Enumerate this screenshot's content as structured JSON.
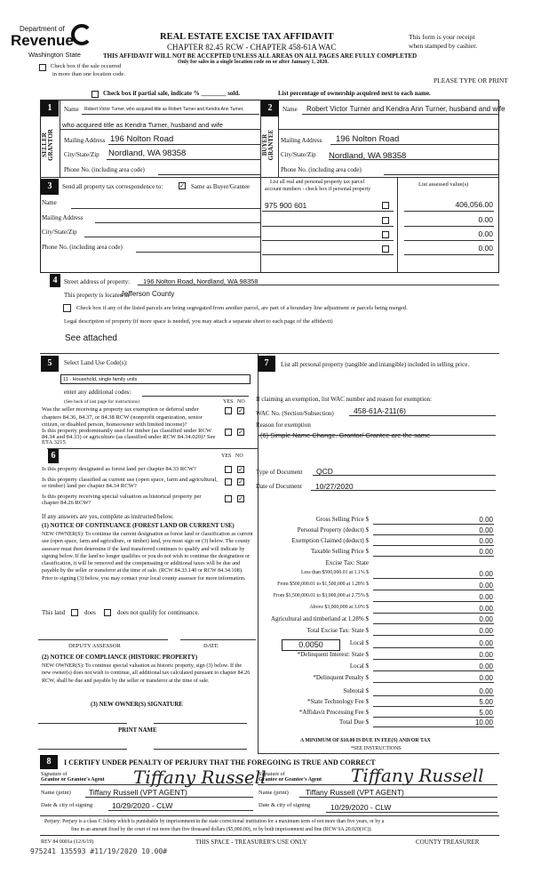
{
  "header": {
    "logo_dept": "Department of",
    "logo_name": "Revenue",
    "logo_state": "Washington State",
    "title": "REAL ESTATE EXCISE TAX AFFIDAVIT",
    "chapter": "CHAPTER 82.45 RCW - CHAPTER 458-61A WAC",
    "warning": "THIS AFFIDAVIT WILL NOT BE ACCEPTED UNLESS ALL AREAS ON ALL PAGES ARE FULLY COMPLETED",
    "only_for": "Only for sales in a single location code on or after January 1, 2020.",
    "receipt1": "This form is your receipt",
    "receipt2": "when stamped by cashier.",
    "multi_loc1": "Check box if the sale occurred",
    "multi_loc2": "in more than one location code.",
    "type_print": "PLEASE TYPE OR PRINT",
    "partial": "Check box if partial sale, indicate %  ________  sold.",
    "percentage": "List percentage of ownership acquired next to each name."
  },
  "seller": {
    "num": "1",
    "side": "SELLER GRANTOR",
    "name_label": "Name",
    "name": "Robert Victor Turner, who acquired title as Robert Turner and Kendra Ann Turner,",
    "name2": "who acquired title as Kendra Turner, husband and wife",
    "mail_label": "Mailing Address",
    "mail": "196 Nolton Road",
    "city_label": "City/State/Zip",
    "city": "Nordland, WA  98358",
    "phone_label": "Phone No. (including area code)"
  },
  "buyer": {
    "num": "2",
    "side": "BUYER GRANTEE",
    "name_label": "Name",
    "name": "Robert Victor Turner and Kendra Ann Turner, husband and wife",
    "mail_label": "Mailing Address",
    "mail": "196 Nolton Road",
    "city_label": "City/State/Zip",
    "city": "Nordland, WA  98358",
    "phone_label": "Phone No. (including area code)"
  },
  "sec3": {
    "num": "3",
    "send": "Send all property tax correspondence to:",
    "same_as": "Same as Buyer/Grantee",
    "same_checked": true,
    "name_label": "Name",
    "mail_label": "Mailing Address",
    "city_label": "City/State/Zip",
    "phone_label": "Phone No. (including area code)",
    "parcel_hdr1": "List all real and personal property tax parcel",
    "parcel_hdr2": "account numbers - check box if personal property",
    "assessed_hdr": "List assessed value(s)",
    "parcels": [
      "975 900 601",
      "",
      "",
      ""
    ],
    "values": [
      "406,056.00",
      "0.00",
      "0.00",
      "0.00"
    ]
  },
  "sec4": {
    "num": "4",
    "street_label": "Street address of property:",
    "street": "196 Nolton Road, Nordland, WA  98358",
    "located_label": "This property is located in",
    "located": "Jefferson County",
    "segregate": "Check box if any of the listed parcels are being segregated from another parcel, are part of a boundary line adjustment or parcels being merged.",
    "legal_label": "Legal description of property (if more space is needed, you may attach a separate sheet to each page of the affidavit)",
    "legal": "See attached"
  },
  "sec5": {
    "num": "5",
    "title": "Select Land Use Code(s):",
    "code": "11 - Household, single family units",
    "additional": "enter any additional codes:",
    "see_back": "(See back of last page for instructions)",
    "yes": "YES",
    "no": "NO",
    "q1": "Was the seller receiving a property tax exemption or deferral under chapters 84.36, 84.37, or 84.38 RCW (nonprofit organization, senior citizen, or disabled person, homeowner with limited income)?",
    "q2": "Is this property predominantly used for timber (as classified under RCW 84.34 and 84.33) or agriculture (as classified under RCW 84.34.020)? See ETA 3215"
  },
  "sec6": {
    "num": "6",
    "yes": "YES",
    "no": "NO",
    "q1": "Is this property designated as forest land per chapter 84.33 RCW?",
    "q2": "Is this property classified as current use (open space, farm and agricultural, or timber) land per chapter 84.34 RCW?",
    "q3": "Is this property receiving special valuation as historical property per chapter 84.26 RCW?",
    "if_yes": "If any answers are yes, complete as instructed below.",
    "n1_title": "(1) NOTICE OF CONTINUANCE (FOREST LAND OR CURRENT USE)",
    "n1_text": "NEW OWNER(S): To continue the current designation as forest land or classification as current use (open space, farm and agriculture, or timber) land, you must sign on (3) below. The county assessor must then determine if the land transferred continues to qualify and will indicate by signing below. If the land no longer qualifies or you do not wish to continue the designation or classification, it will be removed and the compensating or additional taxes will be due and payable by the seller or transferor at the time of sale. (RCW 84.33.140 or RCW 84.34.108). Prior to signing (3) below, you may contact your local county assessor for more information.",
    "this_land": "This land",
    "does": "does",
    "does_not": "does not qualify for continuance.",
    "deputy": "DEPUTY ASSESSOR",
    "date": "DATE",
    "n2_title": "(2) NOTICE OF COMPLIANCE (HISTORIC PROPERTY)",
    "n2_text": "NEW OWNER(S): To continue special valuation as historic property, sign (3) below. If the new owner(s) does not wish to continue, all additional tax calculated pursuant to chapter 84.26 RCW, shall be due and payable by the seller or transferor at the time of sale.",
    "n3_title": "(3) NEW OWNER(S) SIGNATURE",
    "print_name": "PRINT NAME"
  },
  "sec7": {
    "num": "7",
    "title": "List all personal property (tangible and intangible) included in selling price.",
    "claiming": "If claiming an exemption, list WAC number and reason for exemption:",
    "wac_label": "WAC No. (Section/Subsection)",
    "wac": "458-61A-211(6)",
    "reason_label": "Reason for exemption",
    "reason": "(6) Simple Name Change. Grantor/ Grantee are the same",
    "doctype_label": "Type of Document",
    "doctype": "QCD",
    "docdate_label": "Date of Document",
    "docdate": "10/27/2020"
  },
  "tax": {
    "local_rate": "0.0050",
    "rows": [
      {
        "label": "Gross Selling Price  $",
        "value": "0.00"
      },
      {
        "label": "Personal Property (deduct)  $",
        "value": "0.00"
      },
      {
        "label": "Exemption Claimed (deduct)  $",
        "value": "0.00"
      },
      {
        "label": "Taxable Selling Price  $",
        "value": "0.00"
      },
      {
        "label": "Excise Tax: State",
        "value": ""
      },
      {
        "label": "Less than $500,000.01 at 1.1%  $",
        "value": "0.00"
      },
      {
        "label": "From $500,000.01 to $1,500,000 at 1.28%  $",
        "value": "0.00"
      },
      {
        "label": "From $1,500,000.01 to $3,000,000 at 2.75%  $",
        "value": "0.00"
      },
      {
        "label": "Above $3,000,000 at 3.0%  $",
        "value": "0.00"
      },
      {
        "label": "Agricultural and timberland at 1.28%  $",
        "value": "0.00"
      },
      {
        "label": "Total Excise Tax: State  $",
        "value": "0.00"
      },
      {
        "label": "Local  $",
        "value": "0.00"
      },
      {
        "label": "*Delinquent Interest: State  $",
        "value": "0.00"
      },
      {
        "label": "Local  $",
        "value": "0.00"
      },
      {
        "label": "*Delinquent Penalty  $",
        "value": "0.00"
      },
      {
        "label": "Subtotal  $",
        "value": "0.00"
      },
      {
        "label": "*State Technology Fee  $",
        "value": "5.00"
      },
      {
        "label": "*Affidavit Processing Fee  $",
        "value": "5.00"
      },
      {
        "label": "Total Due  $",
        "value": "10.00"
      }
    ],
    "minimum": "A MINIMUM OF $10.00 IS DUE IN FEE(S) AND/OR TAX",
    "see_instr": "*SEE INSTRUCTIONS"
  },
  "sec8": {
    "num": "8",
    "certify": "I CERTIFY UNDER PENALTY OF PERJURY THAT THE FOREGOING IS TRUE AND CORRECT",
    "sig_grantor1": "Signature of",
    "sig_grantor2": "Grantor or Grantor's Agent",
    "sig_grantee1": "Signature of",
    "sig_grantee2": "Grantee or Grantee's Agent",
    "signature": "Tiffany Russell",
    "name_label": "Name (print)",
    "grantor_name": "Tiffany Russell (VPT AGENT)",
    "grantee_name": "Tiffany Russell (VPT AGENT)",
    "date_label": "Date & city of signing",
    "grantor_date": "10/29/2020 - CLW",
    "grantee_date": "10/29/2020 - CLW"
  },
  "footer": {
    "perjury1": "Perjury: Perjury is a class C felony which is punishable by imprisonment in the state correctional institution for a maximum term of not more than five years, or by a",
    "perjury2": "fine in an amount fixed by the court of not more than five thousand dollars ($5,000.00), or by both imprisonment and fine (RCW 9A.20.020(1C)).",
    "rev": "REV 84 0001a (12/6/19)",
    "treasurer_use": "THIS SPACE - TREASURER'S USE ONLY",
    "county_treasurer": "COUNTY TREASURER",
    "stamp": "975241 135593 #11/19/2020 10.00#"
  }
}
